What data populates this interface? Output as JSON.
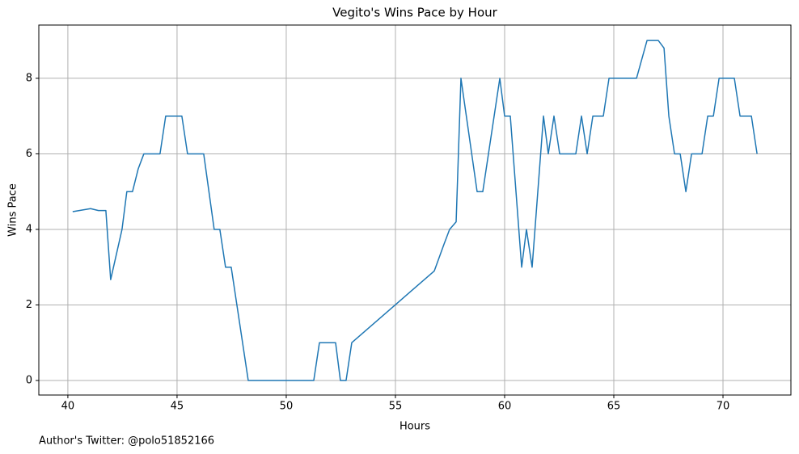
{
  "chart_data": {
    "type": "line",
    "title": "Vegito's Wins Pace by Hour",
    "x_label": "Hours",
    "y_label": "Wins Pace",
    "annotation": "Author's Twitter: @polo51852166",
    "x": [
      40.22,
      41.04,
      41.4,
      41.74,
      41.96,
      42.48,
      42.7,
      42.96,
      43.22,
      43.48,
      44.22,
      44.48,
      45.22,
      45.48,
      46.22,
      46.7,
      46.96,
      47.22,
      47.48,
      48.26,
      51.26,
      51.52,
      52.26,
      52.48,
      52.74,
      53.0,
      56.78,
      57.22,
      57.48,
      57.78,
      58.0,
      58.74,
      59.0,
      59.78,
      60.0,
      60.26,
      60.78,
      61.0,
      61.26,
      61.78,
      62.0,
      62.26,
      62.52,
      63.26,
      63.52,
      63.78,
      64.04,
      64.52,
      64.78,
      66.04,
      66.52,
      67.04,
      67.3,
      67.52,
      67.78,
      68.04,
      68.3,
      68.56,
      69.04,
      69.3,
      69.56,
      69.82,
      70.52,
      70.78,
      71.3,
      71.56
    ],
    "values": [
      4.47,
      4.55,
      4.5,
      4.5,
      2.67,
      4.0,
      5.0,
      5.0,
      5.6,
      6.0,
      6.0,
      7.0,
      7.0,
      6.0,
      6.0,
      4.0,
      4.0,
      3.0,
      3.0,
      0,
      0,
      1,
      1,
      0,
      0,
      1,
      2.9,
      3.6,
      4.0,
      4.2,
      8.0,
      5.0,
      5.0,
      8.0,
      7.0,
      7.0,
      3.0,
      4.0,
      3.0,
      7.0,
      6.0,
      7.0,
      6.0,
      6.0,
      7.0,
      6.0,
      7.0,
      7.0,
      8.0,
      8.0,
      9.0,
      9.0,
      8.8,
      7.0,
      6.0,
      6.0,
      5.0,
      6.0,
      6.0,
      7.0,
      7.0,
      8.0,
      8.0,
      7.0,
      7.0,
      6.0
    ],
    "color": "#1f77b4",
    "xlim": [
      38.67,
      73.11
    ],
    "xticks": [
      40,
      45,
      50,
      55,
      60,
      65,
      70
    ],
    "ylim": [
      -0.385,
      9.41
    ],
    "yticks": [
      0,
      2,
      4,
      6,
      8
    ],
    "grid": true
  }
}
